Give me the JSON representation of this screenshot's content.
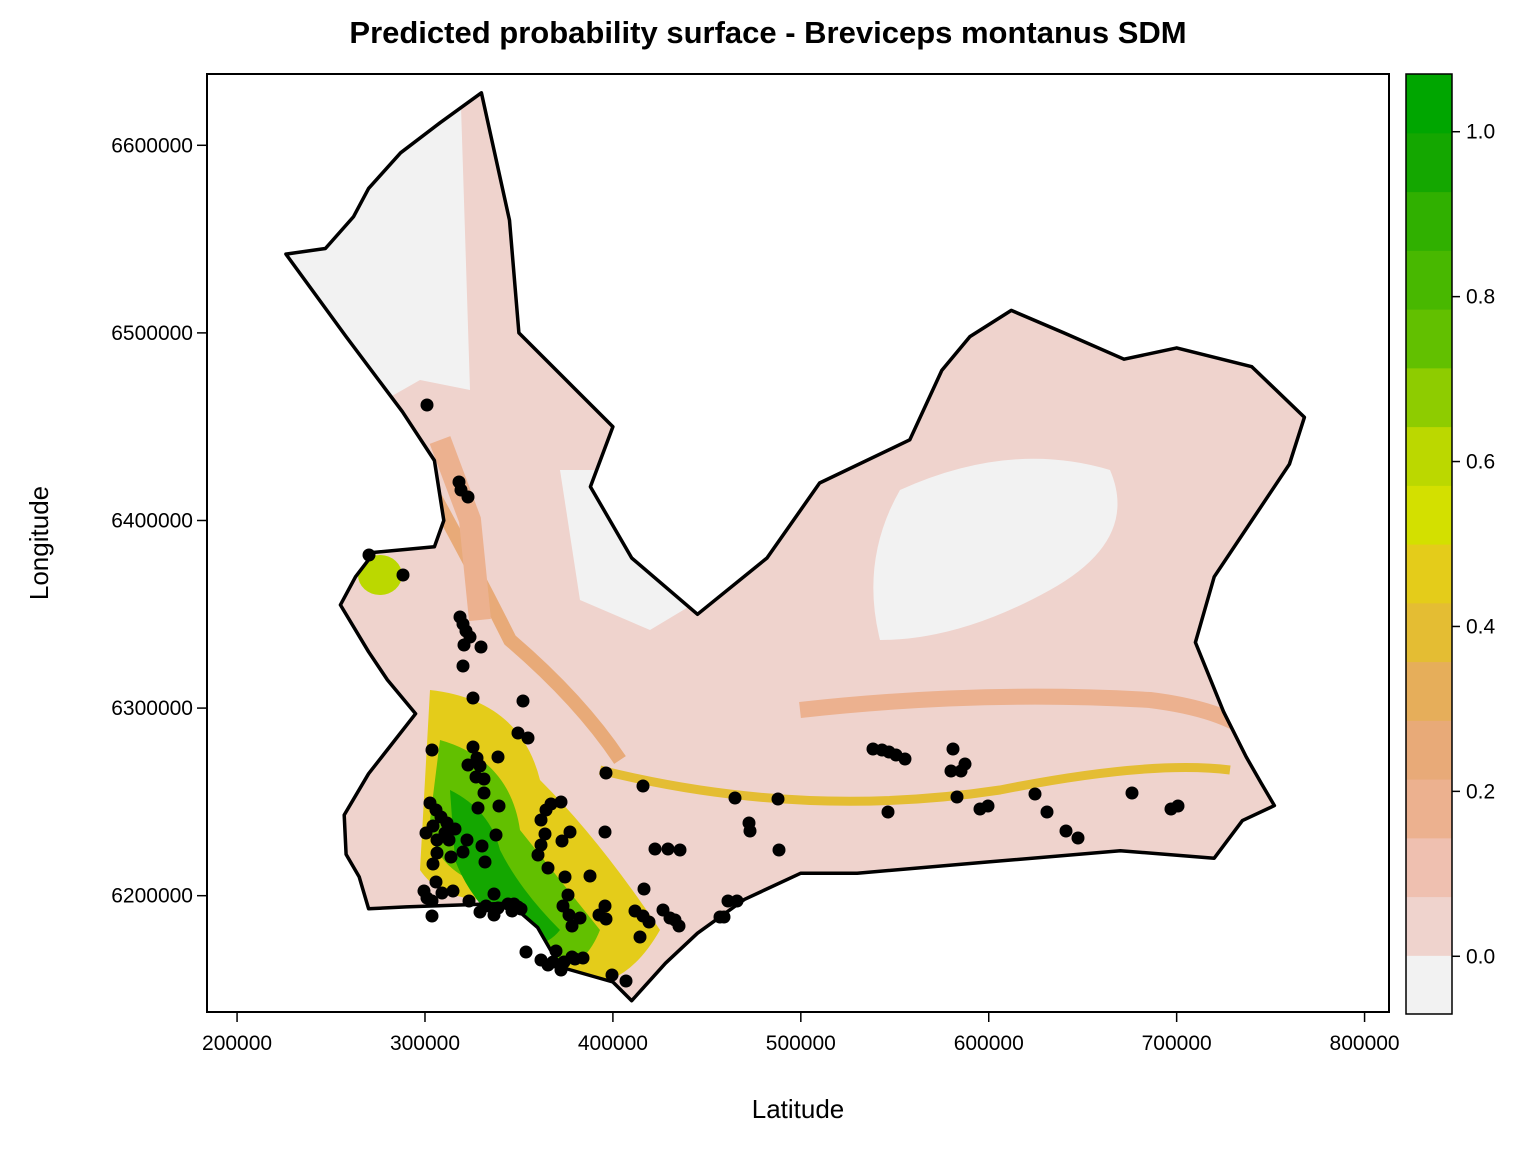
{
  "chart_data": {
    "type": "heatmap",
    "title": "Predicted probability surface - Breviceps montanus SDM",
    "xlabel": "Latitude",
    "ylabel": "Longitude",
    "xlim": [
      184000,
      813000
    ],
    "ylim": [
      6138000,
      6638000
    ],
    "x_ticks": [
      {
        "value": 200000,
        "label": "200000"
      },
      {
        "value": 300000,
        "label": "300000"
      },
      {
        "value": 400000,
        "label": "400000"
      },
      {
        "value": 500000,
        "label": "500000"
      },
      {
        "value": 600000,
        "label": "600000"
      },
      {
        "value": 700000,
        "label": "700000"
      },
      {
        "value": 800000,
        "label": "800000"
      }
    ],
    "y_ticks": [
      {
        "value": 6200000,
        "label": "6200000"
      },
      {
        "value": 6300000,
        "label": "6300000"
      },
      {
        "value": 6400000,
        "label": "6400000"
      },
      {
        "value": 6500000,
        "label": "6500000"
      },
      {
        "value": 6600000,
        "label": "6600000"
      }
    ],
    "legend": {
      "placement": "right",
      "range": [
        -0.07,
        1.07
      ],
      "ticks": [
        {
          "value": 0.0,
          "label": "0.0"
        },
        {
          "value": 0.2,
          "label": "0.2"
        },
        {
          "value": 0.4,
          "label": "0.4"
        },
        {
          "value": 0.6,
          "label": "0.6"
        },
        {
          "value": 0.8,
          "label": "0.8"
        },
        {
          "value": 1.0,
          "label": "1.0"
        }
      ],
      "colors": [
        "#f2f2f2",
        "#efd3cd",
        "#efc0b0",
        "#ecb18f",
        "#e8aa78",
        "#e6ae5a",
        "#e4bd33",
        "#e4cc1a",
        "#d3e000",
        "#bbd800",
        "#8ecc00",
        "#62c000",
        "#48b800",
        "#30b000",
        "#14a700",
        "#00a600"
      ]
    },
    "boundary": [
      [
        330000,
        6628000
      ],
      [
        308000,
        6612000
      ],
      [
        287000,
        6596000
      ],
      [
        270000,
        6577000
      ],
      [
        262000,
        6562000
      ],
      [
        247000,
        6545000
      ],
      [
        226000,
        6542000
      ],
      [
        258000,
        6498000
      ],
      [
        288000,
        6458000
      ],
      [
        305000,
        6432000
      ],
      [
        310000,
        6400000
      ],
      [
        305000,
        6386000
      ],
      [
        273000,
        6383000
      ],
      [
        263000,
        6370000
      ],
      [
        255000,
        6355000
      ],
      [
        270000,
        6330000
      ],
      [
        280000,
        6315000
      ],
      [
        295000,
        6297000
      ],
      [
        270000,
        6265000
      ],
      [
        257000,
        6243000
      ],
      [
        258000,
        6222000
      ],
      [
        265000,
        6210000
      ],
      [
        270000,
        6193000
      ],
      [
        290000,
        6194000
      ],
      [
        345000,
        6196000
      ],
      [
        360000,
        6183000
      ],
      [
        372000,
        6162000
      ],
      [
        400000,
        6154000
      ],
      [
        410000,
        6144000
      ],
      [
        428000,
        6164000
      ],
      [
        445000,
        6180000
      ],
      [
        470000,
        6198000
      ],
      [
        500000,
        6212000
      ],
      [
        530000,
        6212000
      ],
      [
        600000,
        6218000
      ],
      [
        670000,
        6224000
      ],
      [
        720000,
        6220000
      ],
      [
        735000,
        6240000
      ],
      [
        752000,
        6248000
      ],
      [
        745000,
        6260000
      ],
      [
        737000,
        6274000
      ],
      [
        725000,
        6298000
      ],
      [
        710000,
        6335000
      ],
      [
        720000,
        6370000
      ],
      [
        740000,
        6400000
      ],
      [
        760000,
        6430000
      ],
      [
        768000,
        6455000
      ],
      [
        740000,
        6482000
      ],
      [
        700000,
        6492000
      ],
      [
        672000,
        6486000
      ],
      [
        640000,
        6500000
      ],
      [
        612000,
        6512000
      ],
      [
        590000,
        6498000
      ],
      [
        575000,
        6480000
      ],
      [
        558000,
        6443000
      ],
      [
        510000,
        6420000
      ],
      [
        482000,
        6380000
      ],
      [
        445000,
        6350000
      ],
      [
        410000,
        6380000
      ],
      [
        388000,
        6418000
      ],
      [
        400000,
        6450000
      ],
      [
        380000,
        6470000
      ],
      [
        350000,
        6500000
      ],
      [
        345000,
        6560000
      ],
      [
        330000,
        6628000
      ]
    ]
  }
}
